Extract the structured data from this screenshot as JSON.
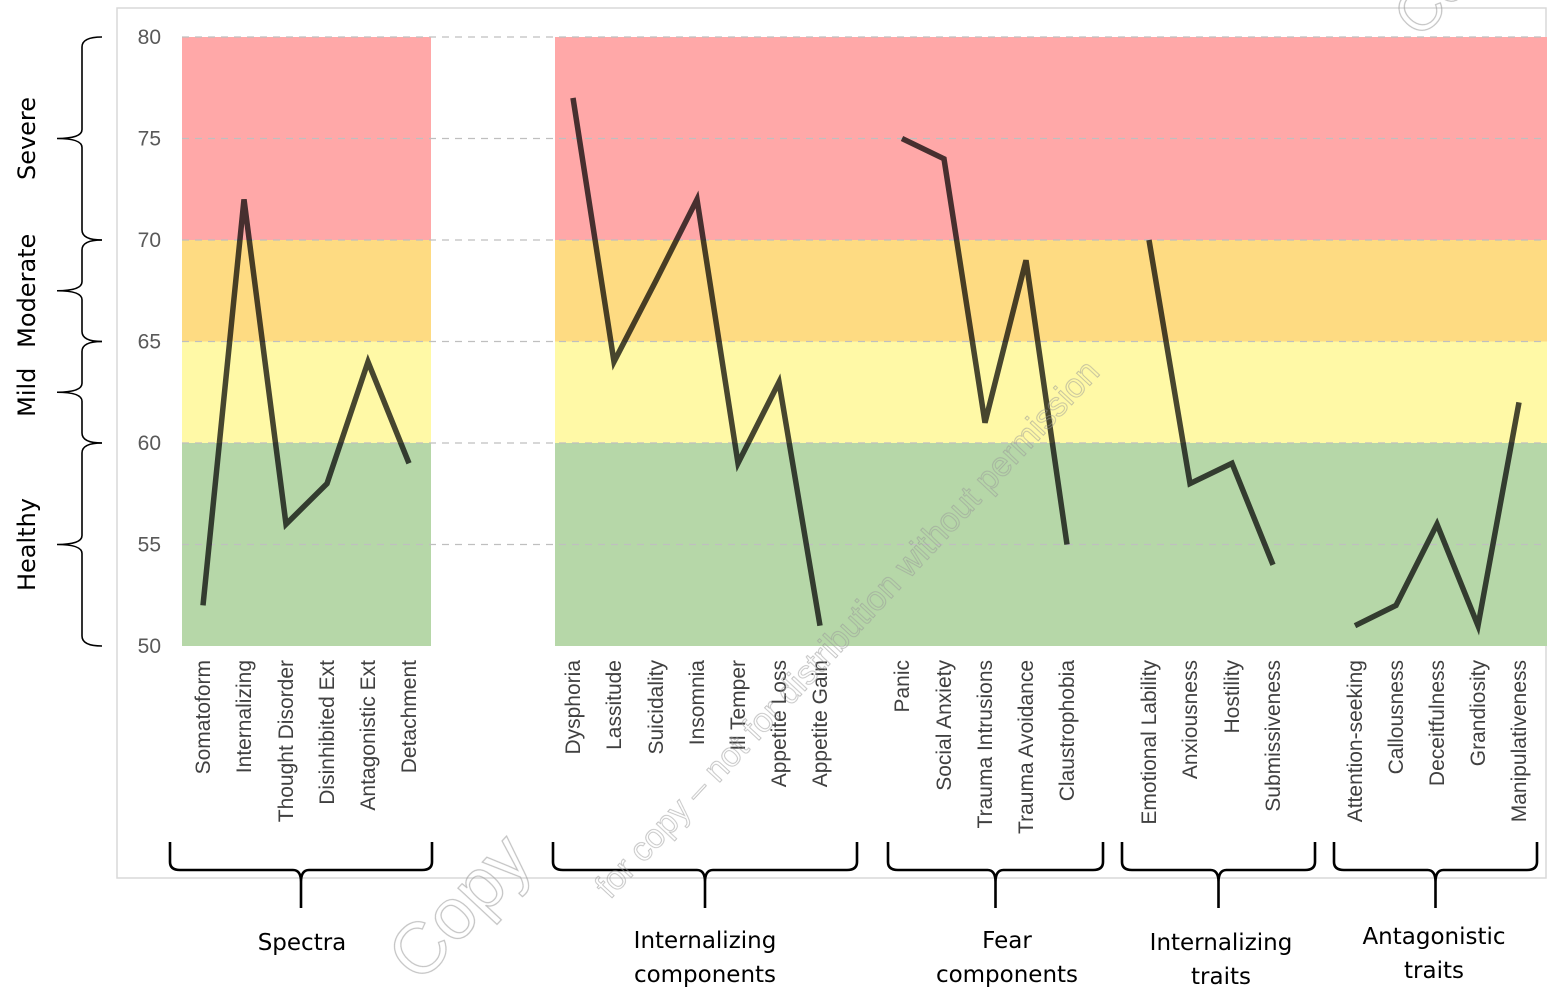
{
  "chart_data": {
    "type": "line",
    "ylim": [
      50,
      80
    ],
    "yticks": [
      50,
      55,
      60,
      65,
      70,
      75,
      80
    ],
    "grid": "horizontal dashed",
    "bands": [
      {
        "from": 50,
        "to": 60,
        "color": "#b6d7a8"
      },
      {
        "from": 60,
        "to": 65,
        "color": "#fff9a6"
      },
      {
        "from": 65,
        "to": 70,
        "color": "#fedb82"
      },
      {
        "from": 70,
        "to": 80,
        "color": "#ffa8a8"
      }
    ],
    "severity_labels": [
      {
        "label": "Healthy",
        "from": 50,
        "to": 60
      },
      {
        "label": "Mild",
        "from": 60,
        "to": 65
      },
      {
        "label": "Moderate",
        "from": 65,
        "to": 70
      },
      {
        "label": "Severe",
        "from": 70,
        "to": 80
      }
    ],
    "line_color": "#000000",
    "groups": [
      {
        "name": "Spectra",
        "categories": [
          "Somatoform",
          "Internalizing",
          "Thought Disorder",
          "Disinhibited Ext",
          "Antagonistic Ext",
          "Detachment"
        ],
        "values": [
          52,
          72,
          56,
          58,
          64,
          59
        ]
      },
      {
        "name": "Internalizing components",
        "categories": [
          "Dysphoria",
          "Lassitude",
          "Suicidality",
          "Insomnia",
          "Ill Temper",
          "Appetite Loss",
          "Appetite Gain"
        ],
        "values": [
          77,
          64,
          68,
          72,
          59,
          63,
          51
        ]
      },
      {
        "name": "Fear components",
        "categories": [
          "Panic",
          "Social Anxiety",
          "Trauma Intrusions",
          "Trauma Avoidance",
          "Claustrophobia"
        ],
        "values": [
          75,
          74,
          61,
          69,
          55
        ]
      },
      {
        "name": "Internalizing traits",
        "categories": [
          "Emotional Lability",
          "Anxiousness",
          "Hostility",
          "Submissiveness"
        ],
        "values": [
          70,
          58,
          59,
          54
        ]
      },
      {
        "name": "Antagonistic traits",
        "categories": [
          "Attention-seeking",
          "Callousness",
          "Deceitfulness",
          "Grandiosity",
          "Manipulativeness"
        ],
        "values": [
          51,
          52,
          56,
          51,
          62
        ]
      }
    ],
    "group_labels": [
      {
        "lines": [
          "Spectra"
        ]
      },
      {
        "lines": [
          "Internalizing",
          "components"
        ]
      },
      {
        "lines": [
          "Fear",
          "components"
        ]
      },
      {
        "lines": [
          "Internalizing",
          "traits"
        ]
      },
      {
        "lines": [
          "Antagonistic",
          "traits"
        ]
      }
    ]
  },
  "watermark": {
    "diagonal_text": "for copy – not for distribution without permission",
    "stamp_text": "Copy",
    "corner_text": "Copy"
  }
}
